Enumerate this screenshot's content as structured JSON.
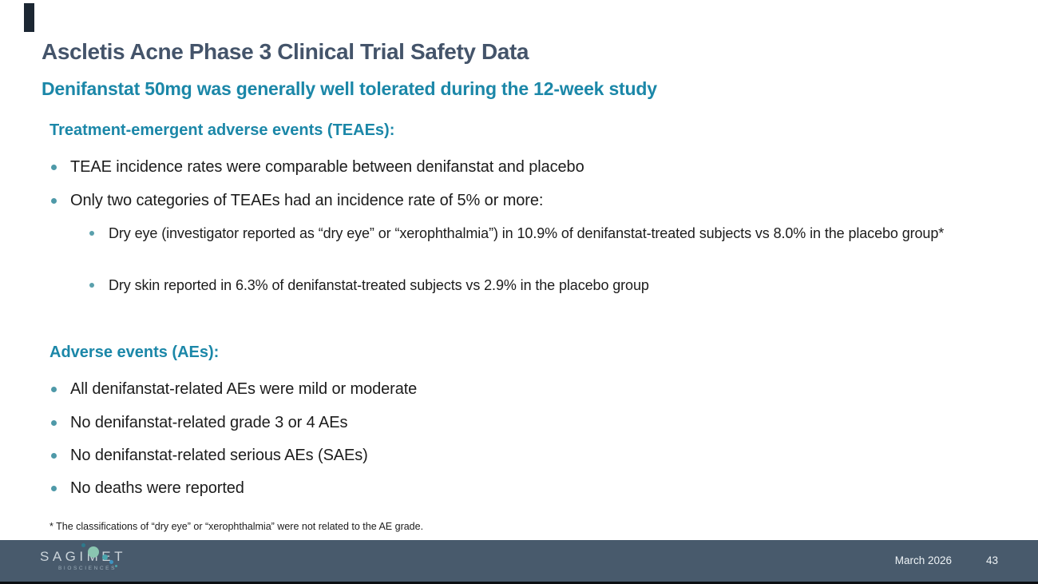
{
  "slide": {
    "title": "Ascletis Acne Phase 3 Clinical Trial Safety Data",
    "subtitle": "Denifanstat 50mg was generally well tolerated during the 12-week study",
    "sections": [
      {
        "heading": "Treatment-emergent adverse events (TEAEs):",
        "bullets": [
          {
            "level": 1,
            "text": "TEAE incidence rates were comparable between denifanstat and placebo"
          },
          {
            "level": 1,
            "text": "Only two categories of TEAEs had an incidence rate of 5% or more:"
          },
          {
            "level": 2,
            "text": "Dry eye (investigator reported as “dry eye” or “xerophthalmia”) in 10.9% of denifanstat-treated subjects vs 8.0% in the placebo group*"
          },
          {
            "level": 2,
            "text": "Dry skin reported in 6.3% of denifanstat-treated subjects vs 2.9% in the placebo group"
          }
        ]
      },
      {
        "heading": "Adverse events (AEs):",
        "bullets": [
          {
            "level": 1,
            "text": "All denifanstat-related AEs were mild or moderate"
          },
          {
            "level": 1,
            "text": "No denifanstat-related grade 3 or 4 AEs"
          },
          {
            "level": 1,
            "text": "No denifanstat-related serious AEs (SAEs)"
          },
          {
            "level": 1,
            "text": "No deaths were reported"
          }
        ]
      }
    ],
    "footnote": "* The classifications of “dry eye” or “xerophthalmia” were not related to the AE grade."
  },
  "footer": {
    "logo": {
      "name": "SAGIMET",
      "tagline": "BIOSCIENCES",
      "dots_icon": "logo-dot-cluster-icon"
    },
    "date": "March 2026",
    "page_number": "43"
  },
  "colors": {
    "title_text": "#44546A",
    "accent_teal": "#1B87A8",
    "body_text": "#1C1C1C",
    "bullet_dot": "#4E99A8",
    "footer_background": "#485A6C",
    "footer_text": "#EEF3F6",
    "logo_text": "#CBD4DA",
    "logo_tagline_text": "#9DAEBA",
    "logo_dot_seafoam": "#8AC6B1",
    "logo_dot_dark_teal": "#2E7A8C",
    "logo_dot_blue": "#3D93C0"
  }
}
